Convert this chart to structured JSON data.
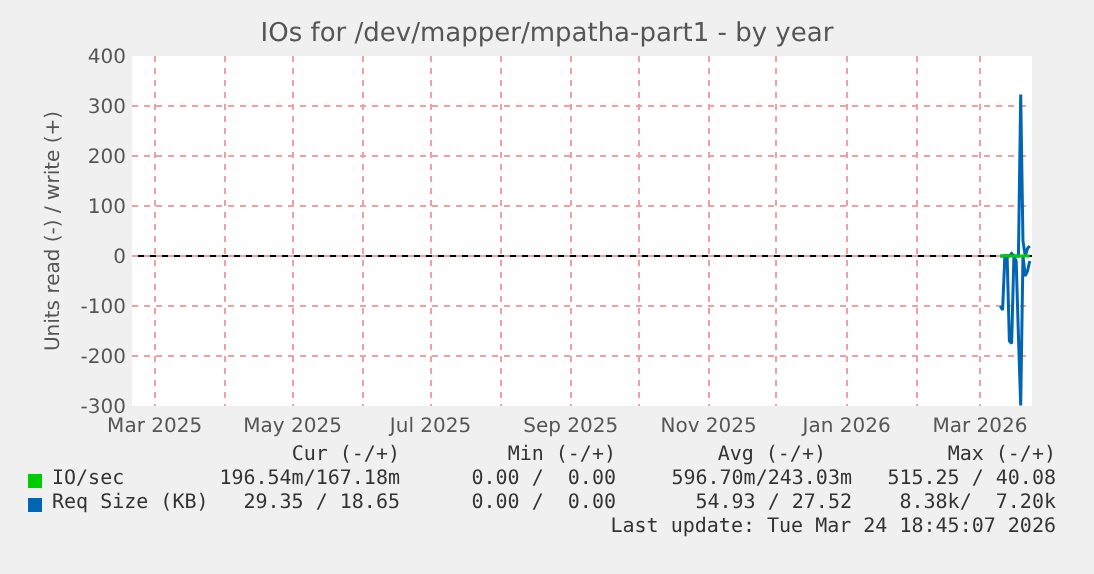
{
  "chart_data": {
    "type": "line",
    "title": "IOs for /dev/mapper/mpatha-part1 - by year",
    "ylabel": "Units read (-) / write (+)",
    "x": [
      "2026-03-10",
      "2026-03-11",
      "2026-03-12",
      "2026-03-13",
      "2026-03-14",
      "2026-03-15",
      "2026-03-16",
      "2026-03-17",
      "2026-03-18",
      "2026-03-19",
      "2026-03-20",
      "2026-03-21",
      "2026-03-22",
      "2026-03-23"
    ],
    "series": [
      {
        "name": "IO/sec",
        "color": "#00cc00",
        "values": [
          0,
          0,
          0,
          0,
          0,
          0,
          0,
          0,
          0,
          0,
          0,
          0,
          0,
          0
        ]
      },
      {
        "name": "Req Size (KB)",
        "color": "#0066b3",
        "values": [
          -100,
          -108,
          0,
          0,
          -170,
          -175,
          0,
          -10,
          -160,
          -299,
          0,
          -40,
          -30,
          -10
        ]
      },
      {
        "color": "#0066b3",
        "values": [
          0,
          0,
          0,
          0,
          0,
          5,
          0,
          0,
          0,
          323,
          30,
          0,
          15,
          20
        ]
      }
    ],
    "xlim": [
      "2025-02-19",
      "2026-03-24"
    ],
    "xticks": [
      {
        "value": "2025-03",
        "label": "Mar 2025"
      },
      {
        "value": "2025-04",
        "label": null
      },
      {
        "value": "2025-05",
        "label": "May 2025"
      },
      {
        "value": "2025-06",
        "label": null
      },
      {
        "value": "2025-07",
        "label": "Jul 2025"
      },
      {
        "value": "2025-08",
        "label": null
      },
      {
        "value": "2025-09",
        "label": "Sep 2025"
      },
      {
        "value": "2025-10",
        "label": null
      },
      {
        "value": "2025-11",
        "label": "Nov 2025"
      },
      {
        "value": "2025-12",
        "label": null
      },
      {
        "value": "2026-01",
        "label": "Jan 2026"
      },
      {
        "value": "2026-02",
        "label": null
      },
      {
        "value": "2026-03",
        "label": "Mar 2026"
      }
    ],
    "ylim": [
      -300,
      400
    ],
    "yticks": [
      -300,
      -200,
      -100,
      0,
      100,
      200,
      300,
      400
    ],
    "grid": true,
    "legend": "bottom",
    "marker": "none",
    "line_style": "solid",
    "ref_lines": [
      {
        "axis": "y",
        "value": 0,
        "color": "#000000"
      }
    ],
    "annotations": [
      "Cur (-/+)",
      "Min (-/+)",
      "Avg (-/+)",
      "Max (-/+)",
      "196.54m/167.18m",
      "0.00 /  0.00",
      "596.70m/243.03m",
      "515.25 / 40.08",
      "29.35 / 18.65",
      "0.00 /  0.00",
      "54.93 / 27.52",
      "8.38k/  7.20k",
      "Last update: Tue Mar 24 18:45:07 2026"
    ]
  }
}
